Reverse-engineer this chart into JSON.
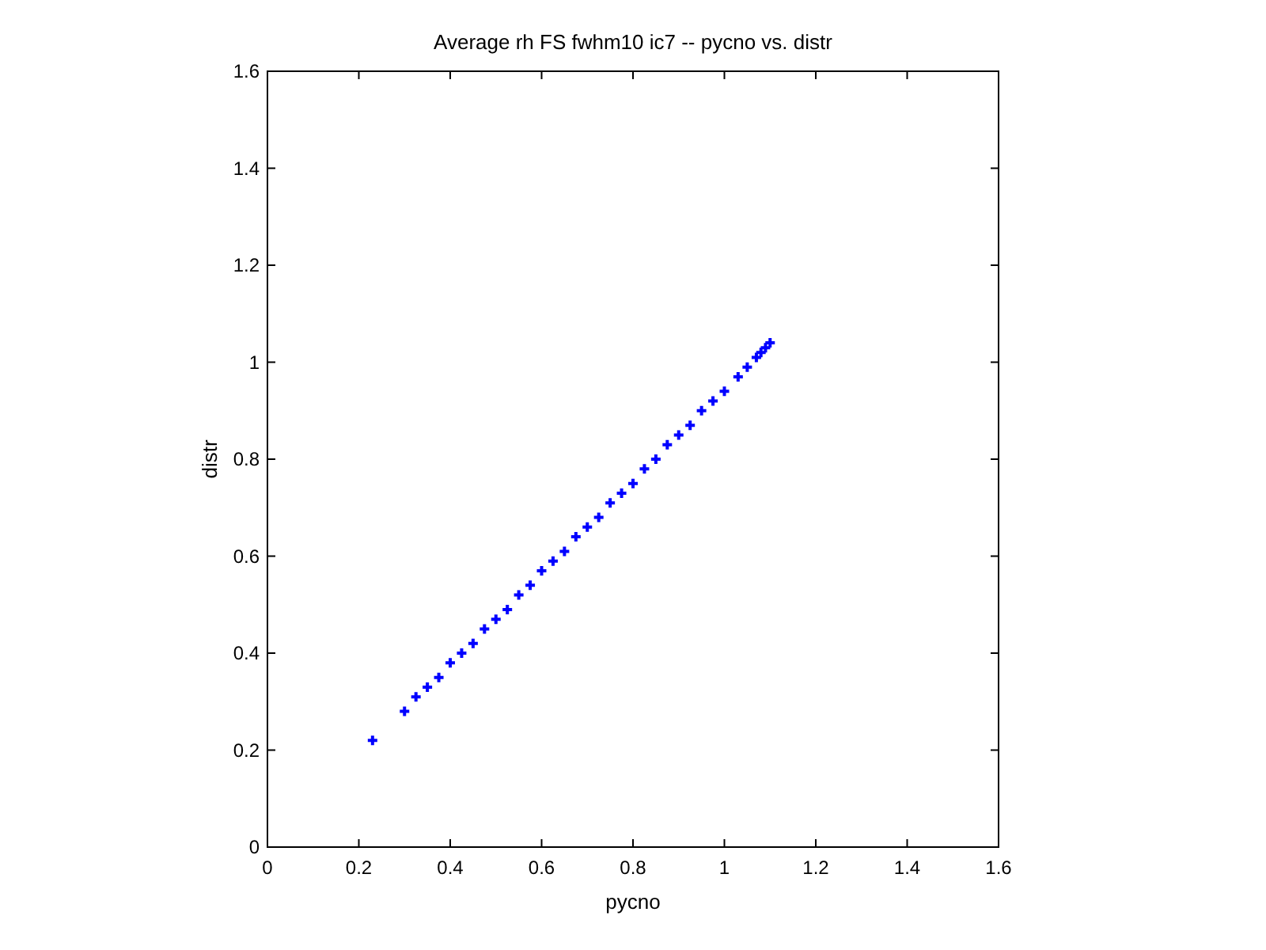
{
  "chart_data": {
    "type": "scatter",
    "title": "Average rh FS fwhm10 ic7 -- pycno vs. distr",
    "xlabel": "pycno",
    "ylabel": "distr",
    "xlim": [
      0,
      1.6
    ],
    "ylim": [
      0,
      1.6
    ],
    "xticks": [
      0,
      0.2,
      0.4,
      0.6,
      0.8,
      1,
      1.2,
      1.4,
      1.6
    ],
    "yticks": [
      0,
      0.2,
      0.4,
      0.6,
      0.8,
      1,
      1.2,
      1.4,
      1.6
    ],
    "grid": false,
    "marker": "cross",
    "series": [
      {
        "color": "#0000ff",
        "x": [
          0.23,
          0.3,
          0.325,
          0.35,
          0.375,
          0.4,
          0.425,
          0.45,
          0.475,
          0.5,
          0.525,
          0.55,
          0.575,
          0.6,
          0.625,
          0.65,
          0.675,
          0.7,
          0.725,
          0.75,
          0.775,
          0.8,
          0.825,
          0.85,
          0.875,
          0.9,
          0.925,
          0.95,
          0.975,
          1.0,
          1.03,
          1.05,
          1.07,
          1.08,
          1.09,
          1.1
        ],
        "values": [
          0.22,
          0.28,
          0.31,
          0.33,
          0.35,
          0.38,
          0.4,
          0.42,
          0.45,
          0.47,
          0.49,
          0.52,
          0.54,
          0.57,
          0.59,
          0.61,
          0.64,
          0.66,
          0.68,
          0.71,
          0.73,
          0.75,
          0.78,
          0.8,
          0.83,
          0.85,
          0.87,
          0.9,
          0.92,
          0.94,
          0.97,
          0.99,
          1.01,
          1.02,
          1.03,
          1.04
        ]
      }
    ]
  }
}
